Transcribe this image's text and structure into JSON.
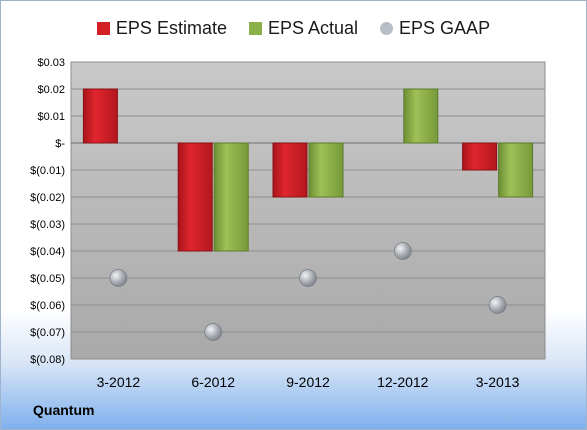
{
  "company": "Quantum",
  "legend": {
    "estimate": "EPS Estimate",
    "actual": "EPS Actual",
    "gaap": "EPS GAAP"
  },
  "colors": {
    "estimate": "#d31f26",
    "actual": "#8cb04a",
    "gaap": "#b9bec6"
  },
  "chart_data": {
    "type": "bar",
    "categories": [
      "3-2012",
      "6-2012",
      "9-2012",
      "12-2012",
      "3-2013"
    ],
    "series": [
      {
        "name": "EPS Estimate",
        "values": [
          0.02,
          -0.04,
          -0.02,
          null,
          -0.01
        ]
      },
      {
        "name": "EPS Actual",
        "values": [
          null,
          -0.04,
          -0.02,
          0.02,
          -0.02
        ]
      },
      {
        "name": "EPS GAAP",
        "type": "scatter",
        "values": [
          -0.05,
          -0.07,
          -0.05,
          -0.04,
          -0.06
        ]
      }
    ],
    "y_ticks": [
      {
        "value": 0.03,
        "label": "$0.03"
      },
      {
        "value": 0.02,
        "label": "$0.02"
      },
      {
        "value": 0.01,
        "label": "$0.01"
      },
      {
        "value": 0,
        "label": "$-"
      },
      {
        "value": -0.01,
        "label": "$(0.01)"
      },
      {
        "value": -0.02,
        "label": "$(0.02)"
      },
      {
        "value": -0.03,
        "label": "$(0.03)"
      },
      {
        "value": -0.04,
        "label": "$(0.04)"
      },
      {
        "value": -0.05,
        "label": "$(0.05)"
      },
      {
        "value": -0.06,
        "label": "$(0.06)"
      },
      {
        "value": -0.07,
        "label": "$(0.07)"
      },
      {
        "value": -0.08,
        "label": "$(0.08)"
      }
    ],
    "ylim": [
      -0.08,
      0.03
    ],
    "grid": true,
    "legend_position": "top"
  }
}
